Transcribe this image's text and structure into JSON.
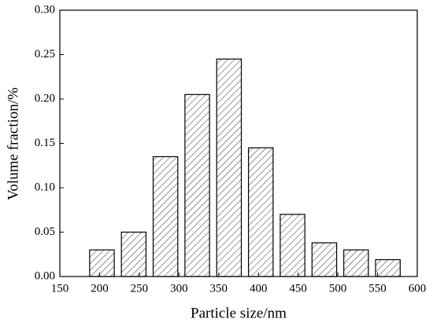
{
  "chart_data": {
    "type": "bar",
    "x_label": "Particle size/nm",
    "y_label": "Volume fraction/%",
    "x": [
      203,
      243,
      283,
      323,
      363,
      403,
      443,
      483,
      523,
      563
    ],
    "values": [
      0.03,
      0.05,
      0.135,
      0.205,
      0.245,
      0.145,
      0.07,
      0.038,
      0.03,
      0.019
    ],
    "color": "#000000",
    "xlim": [
      150,
      600
    ],
    "xticks": [
      150,
      200,
      250,
      300,
      350,
      400,
      450,
      500,
      550,
      600
    ],
    "ylim": [
      0,
      0.3
    ],
    "yticks": [
      {
        "value": 0,
        "label": "0.00"
      },
      {
        "value": 0.05,
        "label": "0.05"
      },
      {
        "value": 0.1,
        "label": "0.10"
      },
      {
        "value": 0.15,
        "label": "0.15"
      },
      {
        "value": 0.2,
        "label": "0.20"
      },
      {
        "value": 0.25,
        "label": "0.25"
      },
      {
        "value": 0.3,
        "label": "0.30"
      }
    ]
  }
}
